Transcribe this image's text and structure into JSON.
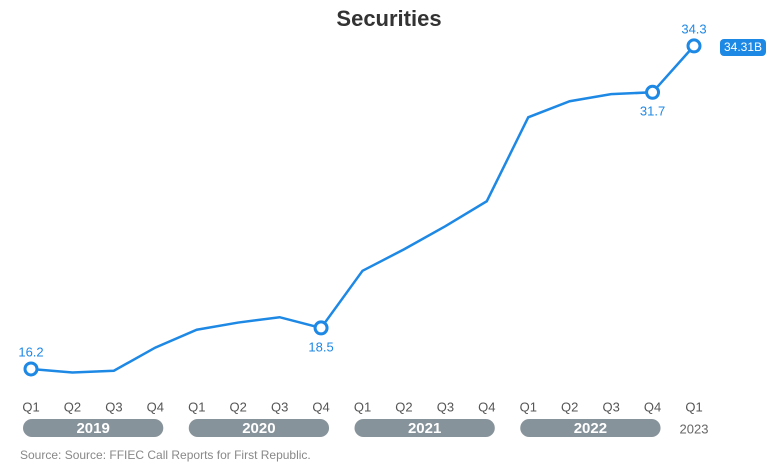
{
  "chart_data": {
    "type": "line",
    "title": "Securities",
    "categories": [
      "Q1",
      "Q2",
      "Q3",
      "Q4",
      "Q1",
      "Q2",
      "Q3",
      "Q4",
      "Q1",
      "Q2",
      "Q3",
      "Q4",
      "Q1",
      "Q2",
      "Q3",
      "Q4",
      "Q1"
    ],
    "groups": [
      {
        "name": "2019",
        "count": 4
      },
      {
        "name": "2020",
        "count": 4
      },
      {
        "name": "2021",
        "count": 4
      },
      {
        "name": "2022",
        "count": 4
      },
      {
        "name": "2023",
        "count": 1
      }
    ],
    "series": [
      {
        "name": "Securities",
        "color": "#1e88e5",
        "values": [
          16.2,
          16.0,
          16.1,
          17.4,
          18.4,
          18.8,
          19.1,
          18.5,
          21.7,
          22.9,
          24.2,
          25.6,
          30.3,
          31.2,
          31.6,
          31.7,
          34.3
        ]
      }
    ],
    "highlighted": [
      0,
      7,
      15,
      16
    ],
    "last_value": {
      "value": 34.31,
      "label": "34.31B"
    },
    "ylim": [
      15,
      35
    ],
    "source": "Source: Source: FFIEC Call Reports for First Republic."
  }
}
